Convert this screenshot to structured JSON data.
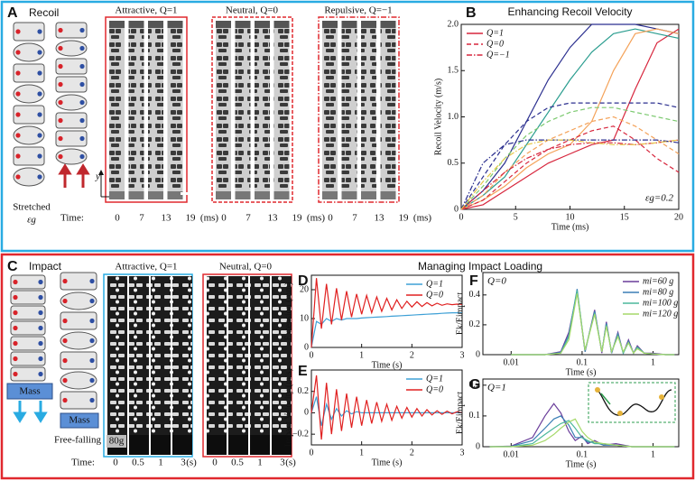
{
  "recoil": {
    "panel_label": "A",
    "title": "Recoil",
    "strain_label": "Stretched",
    "strain_symbol": "εg",
    "axis_symbol": "y",
    "group_titles": [
      "Attractive, Q=1",
      "Neutral, Q=0",
      "Repulsive, Q=−1"
    ],
    "time_label": "Time:",
    "time_ticks": [
      0,
      7,
      13,
      19
    ],
    "time_unit": "(ms)"
  },
  "impact": {
    "panel_label": "C",
    "title": "Impact",
    "heading": "Managing Impact Loading",
    "mass_label": "Mass",
    "free_fall_label": "Free-falling",
    "group_titles": [
      "Attractive, Q=1",
      "Neutral, Q=0"
    ],
    "mass_value": "80g",
    "time_label": "Time:",
    "time_ticks": [
      0,
      0.5,
      1,
      3
    ],
    "time_unit": "(s)"
  },
  "chart_data": [
    {
      "type": "line",
      "panel_label": "B",
      "title": "Enhancing Recoil Velocity",
      "x_label": "Time (ms)",
      "y_label": "Recoil Velocity (m/s)",
      "xlim": [
        0,
        20
      ],
      "xticks": [
        0,
        5,
        10,
        15,
        20
      ],
      "ylim": [
        0,
        2
      ],
      "yticks": [
        0,
        0.5,
        {
          "value": 1,
          "label": "1.0"
        },
        1.5,
        {
          "value": 2,
          "label": "2.0"
        }
      ],
      "legend": "upper left",
      "annotation": "εg=0.2",
      "annotation_corner": "lower right",
      "x": [
        0,
        2,
        4,
        6,
        8,
        10,
        12,
        14,
        16,
        18,
        20
      ],
      "series": [
        {
          "name": "Q=1",
          "color": "#d7263d",
          "dash": "solid",
          "values": [
            0,
            0.05,
            0.2,
            0.35,
            0.5,
            0.6,
            0.7,
            0.75,
            1.3,
            1.8,
            1.95
          ]
        },
        {
          "color": "#2b2f8f",
          "dash": "solid",
          "values": [
            0,
            0.2,
            0.5,
            0.95,
            1.4,
            1.75,
            2.0,
            2.0,
            2.0,
            1.95,
            1.9
          ]
        },
        {
          "color": "#2a9d8f",
          "dash": "solid",
          "values": [
            0,
            0.15,
            0.35,
            0.7,
            1.05,
            1.4,
            1.7,
            1.9,
            1.95,
            1.9,
            1.85
          ]
        },
        {
          "color": "#f4a259",
          "dash": "solid",
          "values": [
            0,
            0.1,
            0.25,
            0.45,
            0.6,
            0.7,
            0.95,
            1.5,
            1.9,
            1.95,
            1.9
          ]
        },
        {
          "name": "Q=0",
          "color": "#d7263d",
          "dash": "dashed",
          "values": [
            0,
            0.1,
            0.3,
            0.5,
            0.65,
            0.75,
            0.85,
            0.9,
            0.75,
            0.55,
            0.4
          ]
        },
        {
          "color": "#2b2f8f",
          "dash": "dashed",
          "values": [
            0,
            0.35,
            0.7,
            0.95,
            1.1,
            1.15,
            1.15,
            1.15,
            1.15,
            1.15,
            1.1
          ]
        },
        {
          "color": "#7bc96f",
          "dash": "dashed",
          "values": [
            0,
            0.25,
            0.55,
            0.8,
            0.95,
            1.05,
            1.1,
            1.1,
            1.05,
            1.0,
            0.95
          ]
        },
        {
          "color": "#f4a259",
          "dash": "dashed",
          "values": [
            0,
            0.15,
            0.4,
            0.6,
            0.75,
            0.85,
            0.95,
            1.0,
            0.9,
            0.75,
            0.6
          ]
        },
        {
          "name": "Q=−1",
          "color": "#d7263d",
          "dash": "dashdot",
          "values": [
            0,
            0.2,
            0.4,
            0.55,
            0.65,
            0.7,
            0.72,
            0.72,
            0.7,
            0.72,
            0.75
          ]
        },
        {
          "color": "#2b2f8f",
          "dash": "dashdot",
          "values": [
            0,
            0.5,
            0.7,
            0.75,
            0.75,
            0.75,
            0.75,
            0.75,
            0.75,
            0.75,
            0.72
          ]
        },
        {
          "color": "#e6c84a",
          "dash": "dashdot",
          "values": [
            0,
            0.3,
            0.55,
            0.7,
            0.75,
            0.75,
            0.72,
            0.7,
            0.7,
            0.72,
            0.75
          ]
        }
      ]
    },
    {
      "type": "line",
      "panel_label": "D",
      "x_label": "Time (s)",
      "y_label": "Extension (mm)",
      "xlim": [
        0,
        3
      ],
      "xticks": [
        0,
        1,
        2,
        3
      ],
      "ylim": [
        0,
        25
      ],
      "yticks": [
        0,
        10,
        20
      ],
      "legend": "upper right",
      "x": [
        0,
        0.1,
        0.2,
        0.3,
        0.4,
        0.5,
        0.6,
        0.7,
        0.8,
        0.9,
        1,
        1.1,
        1.2,
        1.3,
        1.4,
        1.5,
        1.6,
        1.7,
        1.8,
        1.9,
        2,
        2.1,
        2.2,
        2.3,
        2.4,
        2.5,
        2.6,
        2.7,
        2.8,
        2.9,
        3
      ],
      "series": [
        {
          "name": "Q=1",
          "color": "#3ea0d6",
          "dash": "solid",
          "values": [
            0,
            9,
            8,
            10,
            9,
            10,
            9.5,
            10,
            10,
            10,
            10.2,
            10.3,
            10.4,
            10.5,
            10.6,
            10.7,
            10.8,
            10.9,
            11,
            11.1,
            11.2,
            11.3,
            11.4,
            11.5,
            11.6,
            11.7,
            11.8,
            11.9,
            12,
            12,
            12
          ]
        },
        {
          "name": "Q=0",
          "color": "#e02020",
          "dash": "solid",
          "values": [
            0,
            24,
            6.5,
            22,
            8,
            20.5,
            9.5,
            19.5,
            10.5,
            18.5,
            11.5,
            18,
            12,
            17.5,
            12.5,
            17,
            13,
            16.5,
            13.5,
            16,
            14,
            15.8,
            14.2,
            15.5,
            14.4,
            15.3,
            14.6,
            15.1,
            14.8,
            15,
            14.9
          ]
        }
      ]
    },
    {
      "type": "line",
      "panel_label": "E",
      "x_label": "Time (s)",
      "y_label": "Impact Velocity (m/s)",
      "xlim": [
        0,
        3
      ],
      "xticks": [
        0,
        1,
        2,
        3
      ],
      "ylim": [
        -0.3,
        0.4
      ],
      "yticks": [
        {
          "value": -0.2,
          "label": "−0.2"
        },
        0,
        0.2
      ],
      "legend": "upper right",
      "x": [
        0,
        0.1,
        0.2,
        0.3,
        0.4,
        0.5,
        0.6,
        0.7,
        0.8,
        0.9,
        1,
        1.1,
        1.2,
        1.3,
        1.4,
        1.5,
        1.6,
        1.7,
        1.8,
        1.9,
        2,
        2.1,
        2.2,
        2.3,
        2.4,
        2.5,
        2.6,
        2.7,
        2.8,
        2.9,
        3
      ],
      "series": [
        {
          "name": "Q=1",
          "color": "#3ea0d6",
          "dash": "solid",
          "values": [
            0,
            0.15,
            -0.12,
            0.08,
            -0.06,
            0.04,
            -0.03,
            0.02,
            -0.01,
            0.01,
            0,
            0,
            0,
            0,
            0,
            0,
            0,
            0,
            0,
            0,
            0,
            0,
            0,
            0,
            0,
            0,
            0,
            0,
            0,
            0,
            0
          ]
        },
        {
          "name": "Q=0",
          "color": "#e02020",
          "dash": "solid",
          "values": [
            0,
            0.35,
            -0.25,
            0.28,
            -0.2,
            0.22,
            -0.17,
            0.18,
            -0.14,
            0.15,
            -0.12,
            0.12,
            -0.1,
            0.1,
            -0.08,
            0.08,
            -0.07,
            0.06,
            -0.05,
            0.05,
            -0.04,
            0.04,
            -0.03,
            0.03,
            -0.02,
            0.02,
            -0.015,
            0.015,
            -0.01,
            0.01,
            0
          ]
        }
      ]
    },
    {
      "type": "line",
      "panel_label": "F",
      "x_label": "Time (s)",
      "y_label": "Ek/Eimpact",
      "xscale": "log",
      "xlim": [
        0.004,
        2.3
      ],
      "xticks": [
        0.01,
        0.1,
        1
      ],
      "ylim": [
        0,
        0.55
      ],
      "yticks": [
        0,
        0.2,
        0.4
      ],
      "legend": "upper right",
      "annotation": "Q=0",
      "annotation_corner": "upper left",
      "x": [
        0.01,
        0.03,
        0.05,
        0.065,
        0.085,
        0.11,
        0.15,
        0.19,
        0.22,
        0.26,
        0.32,
        0.38,
        0.45,
        0.53,
        0.6,
        0.75,
        1,
        1.5,
        2
      ],
      "series": [
        {
          "name": "mi=60 g",
          "color": "#6a3d9a",
          "dash": "solid",
          "values": [
            0,
            0,
            0.02,
            0.15,
            0.42,
            0.02,
            0.3,
            0.01,
            0.22,
            0.01,
            0.15,
            0.01,
            0.1,
            0.01,
            0.06,
            0.01,
            0.01,
            0,
            0
          ]
        },
        {
          "name": "mi=80 g",
          "color": "#3b7fb5",
          "dash": "solid",
          "values": [
            0,
            0,
            0.015,
            0.13,
            0.44,
            0.02,
            0.29,
            0.02,
            0.21,
            0.01,
            0.14,
            0.01,
            0.09,
            0.01,
            0.05,
            0.01,
            0.005,
            0,
            0
          ]
        },
        {
          "name": "mi=100 g",
          "color": "#4cb89b",
          "dash": "solid",
          "values": [
            0,
            0,
            0.01,
            0.12,
            0.43,
            0.03,
            0.28,
            0.02,
            0.2,
            0.02,
            0.13,
            0.01,
            0.08,
            0.01,
            0.05,
            0.01,
            0.005,
            0,
            0
          ]
        },
        {
          "name": "mi=120 g",
          "color": "#a6d96a",
          "dash": "solid",
          "values": [
            0,
            0,
            0.01,
            0.1,
            0.41,
            0.03,
            0.27,
            0.02,
            0.19,
            0.02,
            0.12,
            0.02,
            0.08,
            0.01,
            0.04,
            0.01,
            0.005,
            0,
            0
          ]
        }
      ]
    },
    {
      "type": "line",
      "panel_label": "G",
      "x_label": "Time (s)",
      "y_label": "Ek/Eimpact",
      "xscale": "log",
      "xlim": [
        0.004,
        2.3
      ],
      "xticks": [
        0.01,
        0.1,
        1
      ],
      "ylim": [
        0,
        0.22
      ],
      "yticks": [
        0,
        0.1,
        0.2
      ],
      "annotation": "Q=1",
      "annotation_corner": "upper left",
      "x": [
        0.005,
        0.01,
        0.02,
        0.03,
        0.04,
        0.05,
        0.065,
        0.08,
        0.1,
        0.12,
        0.15,
        0.2,
        0.3,
        0.5,
        1,
        2
      ],
      "series": [
        {
          "color": "#6a3d9a",
          "dash": "solid",
          "values": [
            0,
            0.002,
            0.03,
            0.1,
            0.14,
            0.11,
            0.05,
            0.02,
            0.035,
            0.01,
            0.02,
            0.005,
            0.01,
            0,
            0,
            0
          ]
        },
        {
          "color": "#3b7fb5",
          "dash": "solid",
          "values": [
            0,
            0.001,
            0.02,
            0.06,
            0.09,
            0.1,
            0.07,
            0.03,
            0.03,
            0.015,
            0.015,
            0.005,
            0.005,
            0,
            0,
            0
          ]
        },
        {
          "color": "#4cb89b",
          "dash": "solid",
          "values": [
            0,
            0,
            0.01,
            0.04,
            0.06,
            0.075,
            0.085,
            0.06,
            0.03,
            0.02,
            0.01,
            0.01,
            0.005,
            0,
            0,
            0
          ]
        },
        {
          "color": "#a6d96a",
          "dash": "solid",
          "values": [
            0,
            0,
            0.005,
            0.02,
            0.04,
            0.06,
            0.08,
            0.09,
            0.05,
            0.03,
            0.015,
            0.01,
            0.005,
            0,
            0,
            0
          ]
        }
      ]
    }
  ]
}
